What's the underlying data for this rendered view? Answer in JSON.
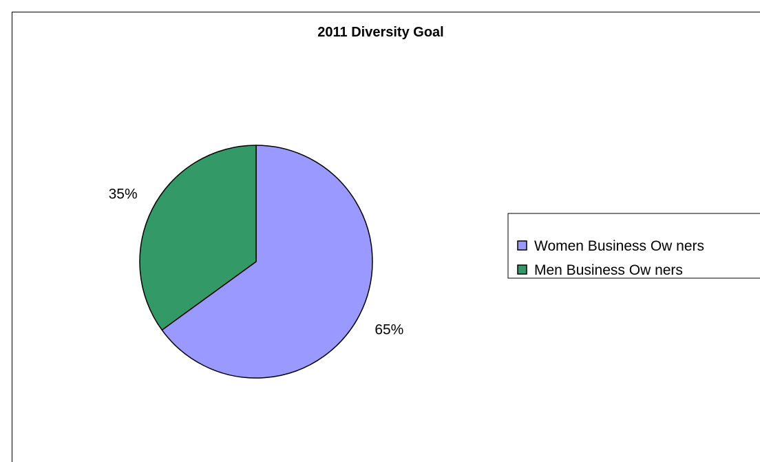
{
  "chart_data": {
    "type": "pie",
    "title": "2011 Diversity Goal",
    "slices": [
      {
        "label": "Women Business Owners",
        "value": 65,
        "display": "65%",
        "color": "#9999ff"
      },
      {
        "label": "Men Business Owners",
        "value": 35,
        "display": "35%",
        "color": "#339966"
      }
    ],
    "start_angle_deg": 0,
    "direction": "clockwise",
    "legend": {
      "placement": "right",
      "entries": [
        "Women Business Ow ners",
        "Men Business Ow ners"
      ]
    }
  }
}
